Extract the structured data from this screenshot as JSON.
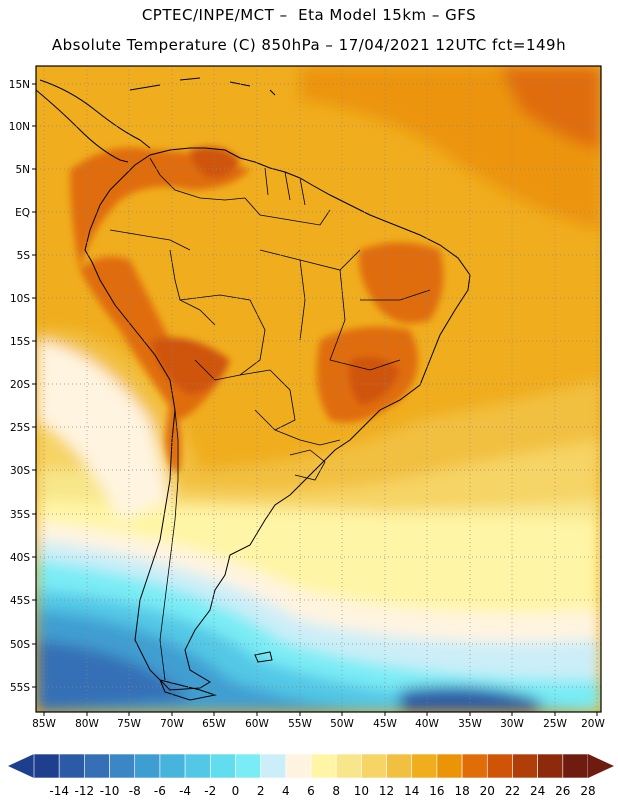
{
  "title": {
    "line1": "CPTEC/INPE/MCT –  Eta Model 15km – GFS",
    "line2": "Absolute Temperature (C) 850hPa – 17/04/2021 12UTC fct=149h"
  },
  "map": {
    "type": "temperature-map",
    "region": "South America",
    "lat_labels": [
      "15N",
      "10N",
      "5N",
      "EQ",
      "5S",
      "10S",
      "15S",
      "20S",
      "25S",
      "30S",
      "35S",
      "40S",
      "45S",
      "50S",
      "55S"
    ],
    "lon_labels": [
      "85W",
      "80W",
      "75W",
      "70W",
      "65W",
      "60W",
      "55W",
      "50W",
      "45W",
      "40W",
      "35W",
      "30W",
      "25W",
      "20W"
    ],
    "lat_range": [
      -58,
      16.5
    ],
    "lon_range": [
      -86,
      -20
    ]
  },
  "colorbar": {
    "ticks": [
      "-14",
      "-12",
      "-10",
      "-8",
      "-6",
      "-4",
      "-2",
      "0",
      "2",
      "4",
      "6",
      "8",
      "10",
      "12",
      "14",
      "16",
      "18",
      "20",
      "22",
      "24",
      "26",
      "28"
    ],
    "colors": [
      "#1e3f8e",
      "#2b5aa6",
      "#3570b6",
      "#3b86c4",
      "#3f9ed1",
      "#46b4dc",
      "#52c8e6",
      "#62dcef",
      "#7aecf5",
      "#cceef8",
      "#fff4e0",
      "#fff5a6",
      "#f8e68a",
      "#f6d465",
      "#f2c040",
      "#f0ad1e",
      "#ec9408",
      "#e06d08",
      "#cf5408",
      "#b03e08",
      "#8e2a0c",
      "#6e1c10"
    ],
    "under_color": "#1e3f8e",
    "over_color": "#6e1c10"
  }
}
